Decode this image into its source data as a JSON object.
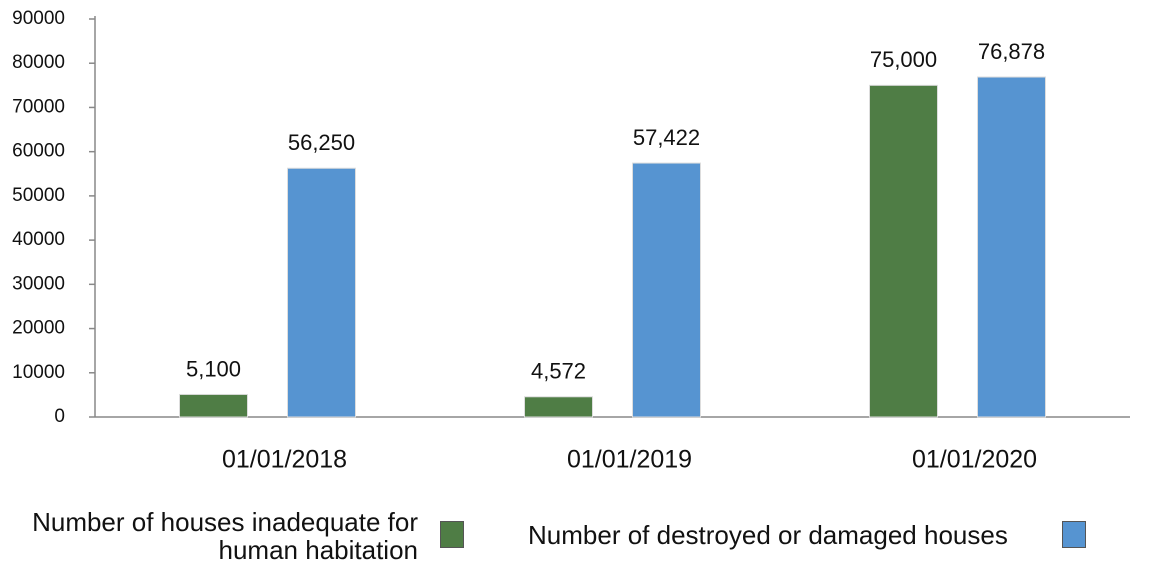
{
  "chart_data": {
    "type": "bar",
    "categories": [
      "01/01/2018",
      "01/01/2019",
      "01/01/2020"
    ],
    "series": [
      {
        "name": "Number of houses inadequate for human habitation",
        "color": "#4f7d45",
        "values": [
          5100,
          4572,
          75000
        ],
        "value_labels": [
          "5,100",
          "4,572",
          "75,000"
        ]
      },
      {
        "name": "Number of destroyed or damaged houses",
        "color": "#5694d1",
        "values": [
          56250,
          57422,
          76878
        ],
        "value_labels": [
          "56,250",
          "57,422",
          "76,878"
        ]
      }
    ],
    "ylim": [
      0,
      90000
    ],
    "yticks": [
      0,
      10000,
      20000,
      30000,
      40000,
      50000,
      60000,
      70000,
      80000,
      90000
    ],
    "legend": "bottom"
  }
}
